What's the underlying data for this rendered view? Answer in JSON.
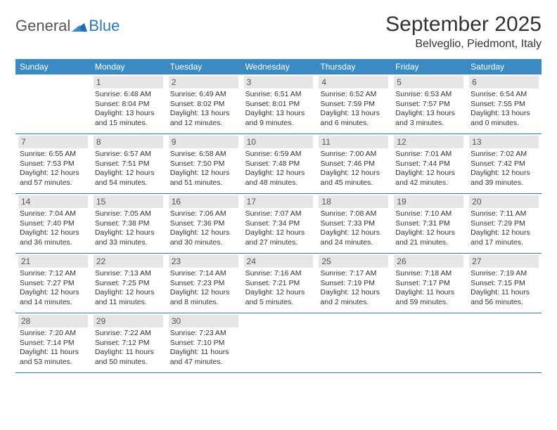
{
  "logo": {
    "general": "General",
    "blue": "Blue"
  },
  "title": "September 2025",
  "location": "Belveglio, Piedmont, Italy",
  "colors": {
    "header_bg": "#3b8ac4",
    "header_text": "#ffffff",
    "daynum_bg": "#e6e6e6",
    "border": "#2a7ab9",
    "text": "#333333",
    "logo_blue": "#2a7ab9",
    "logo_gray": "#555555"
  },
  "weekdays": [
    "Sunday",
    "Monday",
    "Tuesday",
    "Wednesday",
    "Thursday",
    "Friday",
    "Saturday"
  ],
  "weeks": [
    [
      {
        "n": "",
        "sun": "",
        "set": "",
        "dl": ""
      },
      {
        "n": "1",
        "sun": "Sunrise: 6:48 AM",
        "set": "Sunset: 8:04 PM",
        "dl": "Daylight: 13 hours and 15 minutes."
      },
      {
        "n": "2",
        "sun": "Sunrise: 6:49 AM",
        "set": "Sunset: 8:02 PM",
        "dl": "Daylight: 13 hours and 12 minutes."
      },
      {
        "n": "3",
        "sun": "Sunrise: 6:51 AM",
        "set": "Sunset: 8:01 PM",
        "dl": "Daylight: 13 hours and 9 minutes."
      },
      {
        "n": "4",
        "sun": "Sunrise: 6:52 AM",
        "set": "Sunset: 7:59 PM",
        "dl": "Daylight: 13 hours and 6 minutes."
      },
      {
        "n": "5",
        "sun": "Sunrise: 6:53 AM",
        "set": "Sunset: 7:57 PM",
        "dl": "Daylight: 13 hours and 3 minutes."
      },
      {
        "n": "6",
        "sun": "Sunrise: 6:54 AM",
        "set": "Sunset: 7:55 PM",
        "dl": "Daylight: 13 hours and 0 minutes."
      }
    ],
    [
      {
        "n": "7",
        "sun": "Sunrise: 6:55 AM",
        "set": "Sunset: 7:53 PM",
        "dl": "Daylight: 12 hours and 57 minutes."
      },
      {
        "n": "8",
        "sun": "Sunrise: 6:57 AM",
        "set": "Sunset: 7:51 PM",
        "dl": "Daylight: 12 hours and 54 minutes."
      },
      {
        "n": "9",
        "sun": "Sunrise: 6:58 AM",
        "set": "Sunset: 7:50 PM",
        "dl": "Daylight: 12 hours and 51 minutes."
      },
      {
        "n": "10",
        "sun": "Sunrise: 6:59 AM",
        "set": "Sunset: 7:48 PM",
        "dl": "Daylight: 12 hours and 48 minutes."
      },
      {
        "n": "11",
        "sun": "Sunrise: 7:00 AM",
        "set": "Sunset: 7:46 PM",
        "dl": "Daylight: 12 hours and 45 minutes."
      },
      {
        "n": "12",
        "sun": "Sunrise: 7:01 AM",
        "set": "Sunset: 7:44 PM",
        "dl": "Daylight: 12 hours and 42 minutes."
      },
      {
        "n": "13",
        "sun": "Sunrise: 7:02 AM",
        "set": "Sunset: 7:42 PM",
        "dl": "Daylight: 12 hours and 39 minutes."
      }
    ],
    [
      {
        "n": "14",
        "sun": "Sunrise: 7:04 AM",
        "set": "Sunset: 7:40 PM",
        "dl": "Daylight: 12 hours and 36 minutes."
      },
      {
        "n": "15",
        "sun": "Sunrise: 7:05 AM",
        "set": "Sunset: 7:38 PM",
        "dl": "Daylight: 12 hours and 33 minutes."
      },
      {
        "n": "16",
        "sun": "Sunrise: 7:06 AM",
        "set": "Sunset: 7:36 PM",
        "dl": "Daylight: 12 hours and 30 minutes."
      },
      {
        "n": "17",
        "sun": "Sunrise: 7:07 AM",
        "set": "Sunset: 7:34 PM",
        "dl": "Daylight: 12 hours and 27 minutes."
      },
      {
        "n": "18",
        "sun": "Sunrise: 7:08 AM",
        "set": "Sunset: 7:33 PM",
        "dl": "Daylight: 12 hours and 24 minutes."
      },
      {
        "n": "19",
        "sun": "Sunrise: 7:10 AM",
        "set": "Sunset: 7:31 PM",
        "dl": "Daylight: 12 hours and 21 minutes."
      },
      {
        "n": "20",
        "sun": "Sunrise: 7:11 AM",
        "set": "Sunset: 7:29 PM",
        "dl": "Daylight: 12 hours and 17 minutes."
      }
    ],
    [
      {
        "n": "21",
        "sun": "Sunrise: 7:12 AM",
        "set": "Sunset: 7:27 PM",
        "dl": "Daylight: 12 hours and 14 minutes."
      },
      {
        "n": "22",
        "sun": "Sunrise: 7:13 AM",
        "set": "Sunset: 7:25 PM",
        "dl": "Daylight: 12 hours and 11 minutes."
      },
      {
        "n": "23",
        "sun": "Sunrise: 7:14 AM",
        "set": "Sunset: 7:23 PM",
        "dl": "Daylight: 12 hours and 8 minutes."
      },
      {
        "n": "24",
        "sun": "Sunrise: 7:16 AM",
        "set": "Sunset: 7:21 PM",
        "dl": "Daylight: 12 hours and 5 minutes."
      },
      {
        "n": "25",
        "sun": "Sunrise: 7:17 AM",
        "set": "Sunset: 7:19 PM",
        "dl": "Daylight: 12 hours and 2 minutes."
      },
      {
        "n": "26",
        "sun": "Sunrise: 7:18 AM",
        "set": "Sunset: 7:17 PM",
        "dl": "Daylight: 11 hours and 59 minutes."
      },
      {
        "n": "27",
        "sun": "Sunrise: 7:19 AM",
        "set": "Sunset: 7:15 PM",
        "dl": "Daylight: 11 hours and 56 minutes."
      }
    ],
    [
      {
        "n": "28",
        "sun": "Sunrise: 7:20 AM",
        "set": "Sunset: 7:14 PM",
        "dl": "Daylight: 11 hours and 53 minutes."
      },
      {
        "n": "29",
        "sun": "Sunrise: 7:22 AM",
        "set": "Sunset: 7:12 PM",
        "dl": "Daylight: 11 hours and 50 minutes."
      },
      {
        "n": "30",
        "sun": "Sunrise: 7:23 AM",
        "set": "Sunset: 7:10 PM",
        "dl": "Daylight: 11 hours and 47 minutes."
      },
      {
        "n": "",
        "sun": "",
        "set": "",
        "dl": ""
      },
      {
        "n": "",
        "sun": "",
        "set": "",
        "dl": ""
      },
      {
        "n": "",
        "sun": "",
        "set": "",
        "dl": ""
      },
      {
        "n": "",
        "sun": "",
        "set": "",
        "dl": ""
      }
    ]
  ]
}
